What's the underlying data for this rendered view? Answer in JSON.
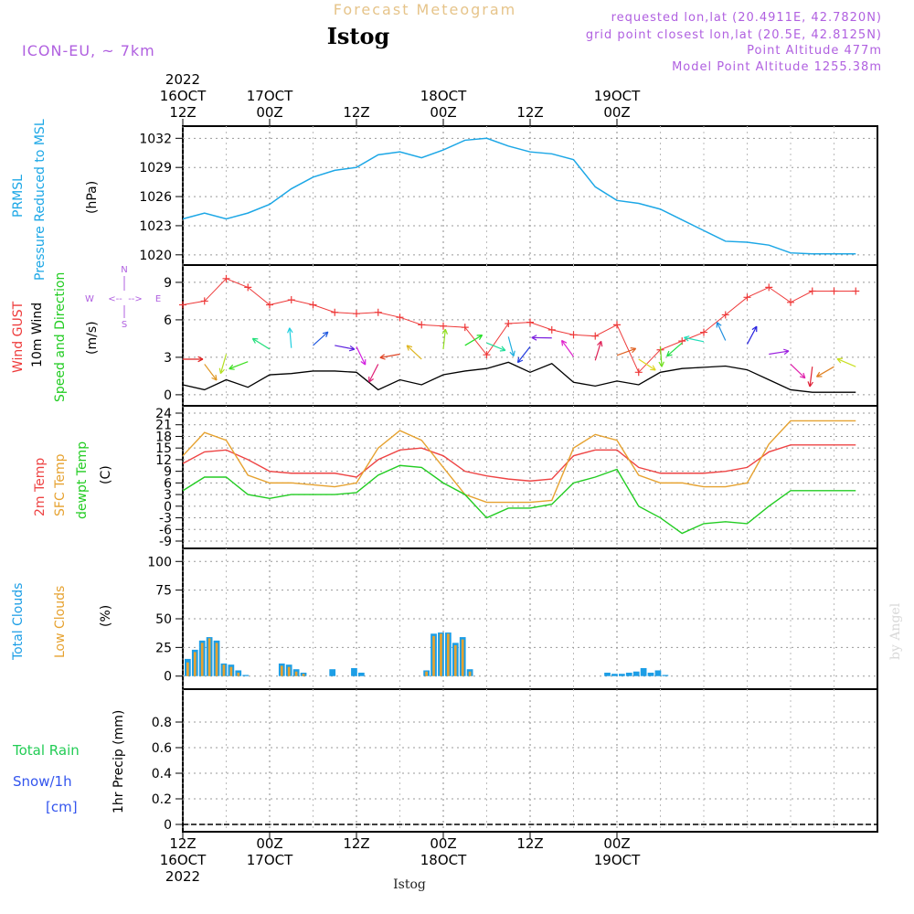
{
  "header": {
    "product_title": "Forecast Meteogram",
    "station_title": "Istog",
    "model_label": "ICON-EU, ~ 7km",
    "requested_point": "requested lon,lat (20.4911E, 42.7820N)",
    "grid_point": "grid point closest lon,lat (20.5E, 42.8125N)",
    "point_altitude": "Point Altitude 477m",
    "model_altitude": "Model Point Altitude 1255.38m"
  },
  "footer": {
    "station": "Istog",
    "credit": "by Angel"
  },
  "colors": {
    "pressure": "#1ca7e6",
    "gust": "#ee3a3a",
    "wind_speed": "#000000",
    "temp": "#ee4444",
    "sfc_temp": "#e6a230",
    "dewpt": "#22cc22",
    "total_clouds": "#1c9ee6",
    "low_clouds": "#e6a230",
    "rain": "#22cc55",
    "snow": "#3355ee",
    "header_purple": "#b060e0",
    "header_title": "#e6c48a"
  },
  "chart_data": [
    {
      "type": "line",
      "name": "pressure",
      "ylabel_lines": [
        "PRMSL",
        "Pressure Reduced to MSL",
        "(hPa)"
      ],
      "x_hours": [
        0,
        3,
        6,
        9,
        12,
        15,
        18,
        21,
        24,
        27,
        30,
        33,
        36,
        39,
        42,
        45,
        48,
        51,
        54,
        57,
        60,
        63,
        66,
        69,
        72,
        75,
        78,
        81,
        84,
        87,
        90,
        93
      ],
      "yticks": [
        1020,
        1023,
        1026,
        1029,
        1032
      ],
      "ylim": [
        1019.7,
        1032.5
      ],
      "series": [
        {
          "name": "PRMSL",
          "values": [
            1023.7,
            1024.3,
            1023.7,
            1024.3,
            1025.2,
            1026.8,
            1028.0,
            1028.7,
            1029.0,
            1030.3,
            1030.6,
            1030.0,
            1030.8,
            1031.8,
            1032.0,
            1031.2,
            1030.6,
            1030.4,
            1029.8,
            1027.0,
            1025.6,
            1025.3,
            1024.7,
            1023.6,
            1022.5,
            1021.4,
            1021.3,
            1021.0,
            1020.2,
            1020.1,
            1020.1,
            1020.1
          ]
        }
      ]
    },
    {
      "type": "line",
      "name": "wind",
      "ylabel_lines": [
        "Wind GUST",
        "10m Wind",
        "Speed and Direction",
        "(m/s)"
      ],
      "compass": {
        "north": "N",
        "south": "S",
        "west": "W",
        "east": "E",
        "west_arrow": "<--",
        "east_arrow": "-->"
      },
      "x_hours": [
        0,
        3,
        6,
        9,
        12,
        15,
        18,
        21,
        24,
        27,
        30,
        33,
        36,
        39,
        42,
        45,
        48,
        51,
        54,
        57,
        60,
        63,
        66,
        69,
        72,
        75,
        78,
        81,
        84,
        87,
        90,
        93
      ],
      "yticks": [
        0,
        3,
        6,
        9
      ],
      "ylim": [
        -0.3,
        9.8
      ],
      "series": [
        {
          "name": "Wind GUST",
          "values": [
            7.2,
            7.5,
            9.3,
            8.6,
            7.2,
            7.6,
            7.2,
            6.6,
            6.5,
            6.6,
            6.2,
            5.6,
            5.5,
            5.4,
            3.2,
            5.7,
            5.8,
            5.2,
            4.8,
            4.7,
            5.6,
            1.8,
            3.6,
            4.3,
            5.0,
            6.4,
            7.8,
            8.6,
            7.4,
            8.3,
            8.3,
            8.3
          ]
        },
        {
          "name": "10m Wind",
          "values": [
            0.8,
            0.4,
            1.2,
            0.6,
            1.6,
            1.7,
            1.9,
            1.9,
            1.8,
            0.4,
            1.2,
            0.8,
            1.6,
            1.9,
            2.1,
            2.6,
            1.8,
            2.5,
            1.0,
            0.7,
            1.1,
            0.8,
            1.8,
            2.1,
            2.2,
            2.3,
            2.0,
            1.2,
            0.4,
            0.2,
            0.2,
            0.2
          ]
        }
      ]
    },
    {
      "type": "line",
      "name": "temperature",
      "ylabel_lines": [
        "2m Temp",
        "SFC Temp",
        "dewpt Temp",
        "(C)"
      ],
      "x_hours": [
        0,
        3,
        6,
        9,
        12,
        15,
        18,
        21,
        24,
        27,
        30,
        33,
        36,
        39,
        42,
        45,
        48,
        51,
        54,
        57,
        60,
        63,
        66,
        69,
        72,
        75,
        78,
        81,
        84,
        87,
        90,
        93
      ],
      "yticks": [
        -9,
        -6,
        -3,
        0,
        3,
        6,
        9,
        12,
        15,
        18,
        21,
        24
      ],
      "ylim": [
        -9,
        24
      ],
      "series": [
        {
          "name": "2m Temp",
          "values": [
            11,
            14,
            14.5,
            12,
            9,
            8.5,
            8.5,
            8.5,
            7.5,
            12,
            14.5,
            15,
            13,
            9,
            7.8,
            7,
            6.5,
            7,
            13,
            14.5,
            14.5,
            10,
            8.5,
            8.5,
            8.5,
            9,
            10,
            14,
            15.8,
            15.8,
            15.8,
            15.8
          ]
        },
        {
          "name": "SFC Temp",
          "values": [
            13,
            19,
            17,
            8,
            6,
            6,
            5.5,
            5,
            6,
            15,
            19.5,
            17,
            10,
            3,
            1,
            1,
            1,
            1.5,
            15,
            18.5,
            17,
            8,
            6,
            6,
            5,
            5,
            6,
            16,
            22,
            22,
            22,
            22
          ]
        },
        {
          "name": "dewpt Temp",
          "values": [
            4,
            7.5,
            7.5,
            3,
            2,
            3,
            3,
            3,
            3.5,
            8,
            10.5,
            10,
            6,
            3,
            -3,
            -0.5,
            -0.5,
            0.5,
            6,
            7.5,
            9.5,
            0,
            -3,
            -7,
            -4.5,
            -4,
            -4.5,
            0,
            4,
            4,
            4,
            4
          ]
        }
      ]
    },
    {
      "type": "bar",
      "name": "clouds",
      "ylabel_lines": [
        "Total Clouds",
        "Low Clouds",
        "(%)"
      ],
      "yticks": [
        0,
        25,
        50,
        75,
        100
      ],
      "ylim": [
        -5,
        105
      ],
      "x_hours": [
        0,
        1,
        2,
        3,
        4,
        5,
        6,
        7,
        8,
        9,
        10,
        11,
        12,
        13,
        14,
        15,
        16,
        17,
        18,
        19,
        20,
        21,
        22,
        23,
        24,
        25,
        26,
        27,
        28,
        29,
        30,
        31,
        32,
        33,
        34,
        35,
        36,
        37,
        38,
        39,
        40,
        41,
        42,
        43,
        44,
        45,
        46,
        47,
        48,
        49,
        50,
        51,
        52,
        53,
        54,
        55,
        56,
        57,
        58,
        59,
        60,
        61,
        62,
        63,
        64,
        65,
        66,
        67,
        68,
        69,
        70,
        71,
        72,
        73,
        74,
        75,
        76,
        77,
        78,
        79,
        80,
        81,
        82,
        83,
        84,
        85,
        86,
        87,
        88,
        89,
        90,
        91,
        92,
        93
      ],
      "series": [
        {
          "name": "Total Clouds",
          "values": [
            15,
            23,
            31,
            34,
            31,
            11,
            10,
            5,
            1,
            0,
            0,
            0,
            0,
            11,
            10,
            6,
            3,
            0,
            0,
            0,
            6,
            0,
            0,
            7,
            3,
            0,
            0,
            0,
            0,
            0,
            0,
            0,
            0,
            5,
            37,
            38,
            38,
            29,
            34,
            6,
            0,
            0,
            0,
            0,
            0,
            0,
            0,
            0,
            0,
            0,
            0,
            0,
            0,
            0,
            0,
            0,
            0,
            0,
            3,
            2,
            2,
            3,
            4,
            7,
            3,
            5,
            1,
            0,
            0,
            0,
            0,
            0,
            0,
            0,
            0,
            0,
            0,
            0,
            0,
            0,
            0,
            0,
            0,
            0,
            0,
            0,
            0,
            0,
            0,
            0,
            0,
            0,
            0,
            0
          ]
        },
        {
          "name": "Low Clouds",
          "values": [
            12,
            21,
            29,
            33,
            29,
            10,
            8,
            3,
            0,
            0,
            0,
            0,
            0,
            9,
            8,
            4,
            2,
            0,
            0,
            0,
            0,
            0,
            0,
            0,
            0,
            0,
            0,
            0,
            0,
            0,
            0,
            0,
            0,
            4,
            35,
            37,
            37,
            27,
            32,
            4,
            0,
            0,
            0,
            0,
            0,
            0,
            0,
            0,
            0,
            0,
            0,
            0,
            0,
            0,
            0,
            0,
            0,
            0,
            0,
            0,
            0,
            0,
            0,
            0,
            0,
            0,
            0,
            0,
            0,
            0,
            0,
            0,
            0,
            0,
            0,
            0,
            0,
            0,
            0,
            0,
            0,
            0,
            0,
            0,
            0,
            0,
            0,
            0,
            0,
            0,
            0,
            0,
            0,
            0
          ]
        }
      ]
    },
    {
      "type": "bar",
      "name": "precip",
      "ylabel": "1hr Precip (mm)",
      "legend_lines": [
        "Total  Rain",
        "Snow/1h",
        "[cm]"
      ],
      "yticks": [
        "0",
        "0.2",
        "0.4",
        "0.6",
        "0.8"
      ],
      "ylim": [
        0,
        1
      ],
      "series": [
        {
          "name": "Total Rain",
          "values": []
        },
        {
          "name": "Snow/1h",
          "values": []
        }
      ]
    }
  ],
  "axes": {
    "top_ticks": [
      {
        "hour": 0,
        "lines": [
          "2022",
          "16OCT",
          "12Z"
        ]
      },
      {
        "hour": 12,
        "lines": [
          "17OCT",
          "00Z"
        ]
      },
      {
        "hour": 24,
        "lines": [
          "12Z"
        ]
      },
      {
        "hour": 36,
        "lines": [
          "18OCT",
          "00Z"
        ]
      },
      {
        "hour": 48,
        "lines": [
          "12Z"
        ]
      },
      {
        "hour": 60,
        "lines": [
          "19OCT",
          "00Z"
        ]
      }
    ],
    "bottom_ticks": [
      {
        "hour": 0,
        "lines": [
          "12Z",
          "16OCT",
          "2022"
        ]
      },
      {
        "hour": 12,
        "lines": [
          "00Z",
          "17OCT"
        ]
      },
      {
        "hour": 24,
        "lines": [
          "12Z"
        ]
      },
      {
        "hour": 36,
        "lines": [
          "00Z",
          "18OCT"
        ]
      },
      {
        "hour": 48,
        "lines": [
          "12Z"
        ]
      },
      {
        "hour": 60,
        "lines": [
          "00Z",
          "19OCT"
        ]
      }
    ]
  }
}
